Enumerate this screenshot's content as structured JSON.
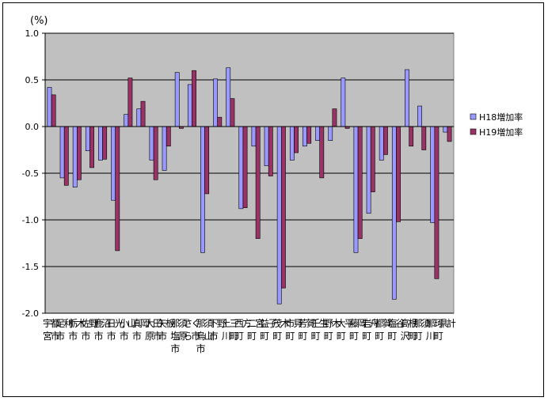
{
  "chart_data": {
    "type": "bar",
    "unit_label": "(%)",
    "ylim": [
      -2.0,
      1.0
    ],
    "yticks": [
      "1.0",
      "0.5",
      "0.0",
      "-0.5",
      "-1.0",
      "-1.5",
      "-2.0"
    ],
    "ytick_values": [
      1.0,
      0.5,
      0.0,
      -0.5,
      -1.0,
      -1.5,
      -2.0
    ],
    "grid": true,
    "legend_position": "right",
    "categories": [
      "宇都宮市",
      "足利市",
      "栃木市",
      "佐野市",
      "鹿沼市",
      "日光市",
      "小山市",
      "真岡市",
      "大田原市",
      "矢板市",
      "那須塩原市",
      "さくら市",
      "那須烏山市",
      "下野市",
      "上三川町",
      "西方町",
      "二宮町",
      "益子町",
      "茂木町",
      "市貝町",
      "芳賀町",
      "壬生町",
      "野木町",
      "大平町",
      "藤岡町",
      "岩舟町",
      "都賀町",
      "塩谷町",
      "高根沢町",
      "那須町",
      "那珂川町",
      "県計"
    ],
    "series": [
      {
        "name": "H18増加率",
        "color": "#9999ff",
        "values": [
          0.42,
          -0.55,
          -0.65,
          -0.26,
          -0.36,
          -0.79,
          0.13,
          0.19,
          -0.36,
          -0.47,
          0.58,
          0.45,
          -1.35,
          0.51,
          0.63,
          -0.88,
          -0.21,
          -0.42,
          -1.9,
          -0.36,
          -0.21,
          -0.15,
          -0.15,
          0.52,
          -1.35,
          -0.93,
          -0.36,
          -1.85,
          0.61,
          0.22,
          -1.03,
          -0.06
        ]
      },
      {
        "name": "H19増加率",
        "color": "#993366",
        "values": [
          0.34,
          -0.63,
          -0.57,
          -0.44,
          -0.35,
          -1.33,
          0.52,
          0.27,
          -0.57,
          -0.21,
          -0.02,
          0.6,
          -0.72,
          0.1,
          0.3,
          -0.87,
          -1.2,
          -0.53,
          -1.73,
          -0.28,
          -0.18,
          -0.55,
          0.19,
          -0.02,
          -1.2,
          -0.7,
          -0.3,
          -1.02,
          -0.21,
          -0.25,
          -1.63,
          -0.16
        ]
      }
    ]
  }
}
